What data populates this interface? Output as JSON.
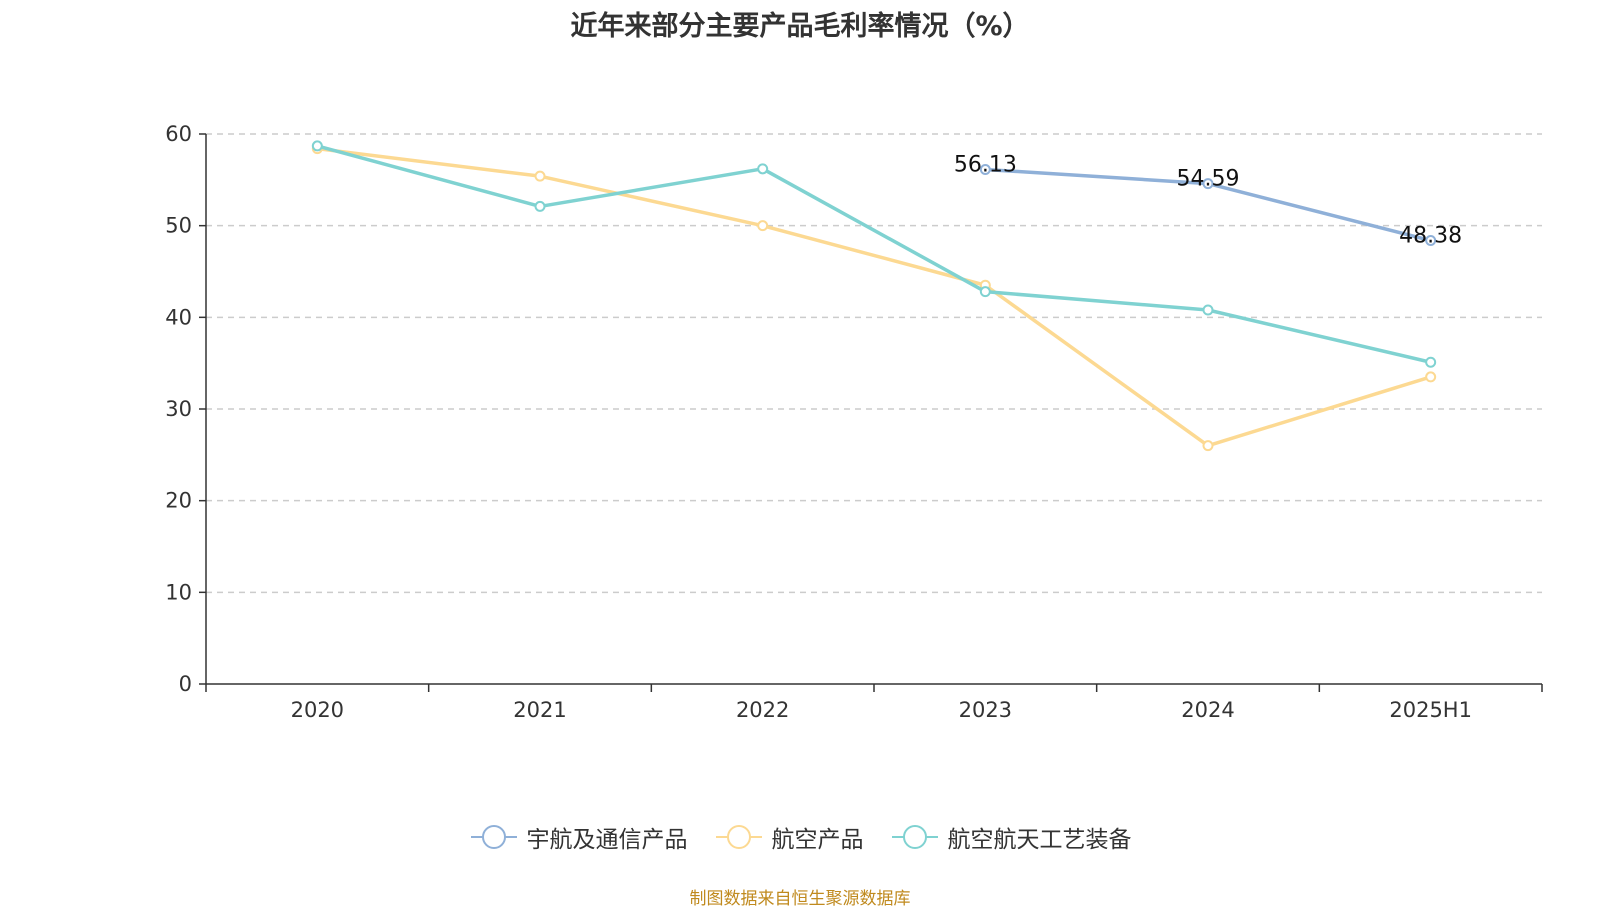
{
  "chart_data": {
    "type": "line",
    "title": "近年来部分主要产品毛利率情况（%）",
    "categories": [
      "2020",
      "2021",
      "2022",
      "2023",
      "2024",
      "2025H1"
    ],
    "ylim": [
      0,
      60
    ],
    "yticks": [
      0,
      10,
      20,
      30,
      40,
      50,
      60
    ],
    "grid": true,
    "legend_position": "bottom",
    "series": [
      {
        "name": "宇航及通信产品",
        "color": "#8fb0d8",
        "values": [
          null,
          null,
          null,
          56.13,
          54.59,
          48.38
        ],
        "labels": [
          null,
          null,
          null,
          "56.13",
          "54.59",
          "48.38"
        ]
      },
      {
        "name": "航空产品",
        "color": "#fcd992",
        "values": [
          58.4,
          55.4,
          50.0,
          43.5,
          26.0,
          33.5
        ],
        "labels": [
          null,
          null,
          null,
          null,
          null,
          null
        ]
      },
      {
        "name": "航空航天工艺装备",
        "color": "#7fd2d1",
        "values": [
          58.7,
          52.1,
          56.2,
          42.8,
          40.8,
          35.1
        ],
        "labels": [
          null,
          null,
          null,
          null,
          null,
          null
        ]
      }
    ]
  },
  "footer": {
    "source": "制图数据来自恒生聚源数据库"
  }
}
